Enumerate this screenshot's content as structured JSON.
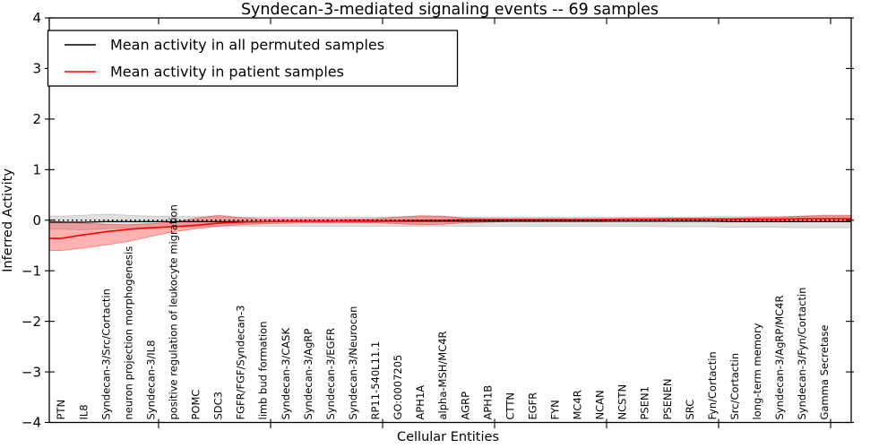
{
  "title": "Syndecan-3-mediated signaling events -- 69 samples",
  "axes": {
    "ylabel": "Inferred Activity",
    "xlabel": "Cellular Entities",
    "ytick_labels": [
      "4",
      "3",
      "2",
      "1",
      "0",
      "−1",
      "−2",
      "−3",
      "−4"
    ],
    "ytick_values": [
      4,
      3,
      2,
      1,
      0,
      -1,
      -2,
      -3,
      -4
    ],
    "ylim": [
      -4,
      4
    ]
  },
  "legend": {
    "entries": [
      {
        "label": "Mean activity in all permuted samples",
        "color": "#000000"
      },
      {
        "label": "Mean activity in patient samples",
        "color": "#ff0000"
      }
    ]
  },
  "chart_data": {
    "type": "line",
    "title": "Syndecan-3-mediated signaling events -- 69 samples",
    "xlabel": "Cellular Entities",
    "ylabel": "Inferred Activity",
    "ylim": [
      -4,
      4
    ],
    "grid": false,
    "legend_position": "upper left",
    "zero_line": {
      "style": "dotted",
      "color": "#000000",
      "value": 0
    },
    "categories": [
      "PTN",
      "IL8",
      "Syndecan-3/Src/Cortactin",
      "neuron projection morphogenesis",
      "Syndecan-3/IL8",
      "positive regulation of leukocyte migration",
      "POMC",
      "SDC3",
      "FGFR/FGF/Syndecan-3",
      "limb bud formation",
      "Syndecan-3/CASK",
      "Syndecan-3/AgRP",
      "Syndecan-3/EGFR",
      "Syndecan-3/Neurocan",
      "RP11-540L11.1",
      "GO:0007205",
      "APH1A",
      "alpha-MSH/MC4R",
      "AGRP",
      "APH1B",
      "CTTN",
      "EGFR",
      "FYN",
      "MC4R",
      "NCAN",
      "NCSTN",
      "PSEN1",
      "PSENEN",
      "SRC",
      "Fyn/Cortactin",
      "Src/Cortactin",
      "long-term memory",
      "Syndecan-3/AgRP/MC4R",
      "Syndecan-3/Fyn/Cortactin",
      "Gamma Secretase"
    ],
    "series": [
      {
        "name": "Mean activity in all permuted samples",
        "color": "#000000",
        "values": [
          -0.04,
          -0.04,
          -0.03,
          -0.03,
          -0.03,
          -0.03,
          -0.03,
          -0.03,
          -0.03,
          -0.03,
          -0.02,
          -0.02,
          -0.02,
          -0.02,
          -0.02,
          -0.02,
          -0.02,
          -0.02,
          -0.02,
          -0.02,
          -0.02,
          -0.02,
          -0.02,
          -0.02,
          -0.02,
          -0.02,
          -0.02,
          -0.02,
          -0.02,
          -0.02,
          -0.03,
          -0.03,
          -0.03,
          -0.03,
          -0.03
        ]
      },
      {
        "name": "Mean activity in patient samples",
        "color": "#ff0000",
        "values": [
          -0.36,
          -0.29,
          -0.23,
          -0.18,
          -0.15,
          -0.13,
          -0.1,
          -0.06,
          -0.04,
          -0.03,
          -0.02,
          -0.02,
          -0.02,
          -0.01,
          -0.01,
          -0.01,
          0.0,
          0.0,
          0.01,
          0.01,
          0.01,
          0.01,
          0.01,
          0.01,
          0.01,
          0.02,
          0.02,
          0.02,
          0.02,
          0.02,
          0.02,
          0.02,
          0.02,
          0.03,
          0.03
        ]
      }
    ],
    "bands": [
      {
        "name": "permuted-range",
        "color": "#000000",
        "opacity": 0.12,
        "upper": [
          0.08,
          0.1,
          0.12,
          0.1,
          0.08,
          0.07,
          0.07,
          0.07,
          0.06,
          0.06,
          0.06,
          0.06,
          0.06,
          0.06,
          0.06,
          0.07,
          0.07,
          0.07,
          0.06,
          0.06,
          0.06,
          0.06,
          0.06,
          0.06,
          0.06,
          0.06,
          0.06,
          0.06,
          0.06,
          0.07,
          0.07,
          0.07,
          0.07,
          0.08,
          0.08
        ],
        "lower": [
          -0.18,
          -0.19,
          -0.17,
          -0.15,
          -0.14,
          -0.13,
          -0.13,
          -0.12,
          -0.12,
          -0.12,
          -0.12,
          -0.12,
          -0.12,
          -0.12,
          -0.12,
          -0.12,
          -0.12,
          -0.12,
          -0.12,
          -0.12,
          -0.12,
          -0.12,
          -0.12,
          -0.12,
          -0.12,
          -0.12,
          -0.12,
          -0.13,
          -0.13,
          -0.13,
          -0.14,
          -0.14,
          -0.14,
          -0.15,
          -0.15
        ]
      },
      {
        "name": "patient-range",
        "color": "#ff0000",
        "opacity": 0.3,
        "upper": [
          -0.03,
          -0.06,
          -0.08,
          -0.09,
          -0.07,
          -0.04,
          0.04,
          0.1,
          0.05,
          0.02,
          0.02,
          0.02,
          0.02,
          0.02,
          0.03,
          0.06,
          0.09,
          0.08,
          0.04,
          0.03,
          0.03,
          0.03,
          0.03,
          0.03,
          0.03,
          0.03,
          0.03,
          0.04,
          0.04,
          0.04,
          0.04,
          0.05,
          0.06,
          0.08,
          0.1
        ],
        "lower": [
          -0.6,
          -0.55,
          -0.49,
          -0.42,
          -0.32,
          -0.23,
          -0.17,
          -0.12,
          -0.09,
          -0.07,
          -0.06,
          -0.05,
          -0.05,
          -0.05,
          -0.05,
          -0.07,
          -0.09,
          -0.08,
          -0.05,
          -0.04,
          -0.03,
          -0.03,
          -0.03,
          -0.03,
          -0.03,
          -0.02,
          -0.02,
          -0.02,
          -0.02,
          -0.02,
          -0.02,
          -0.02,
          -0.02,
          -0.02,
          -0.02
        ]
      }
    ]
  }
}
